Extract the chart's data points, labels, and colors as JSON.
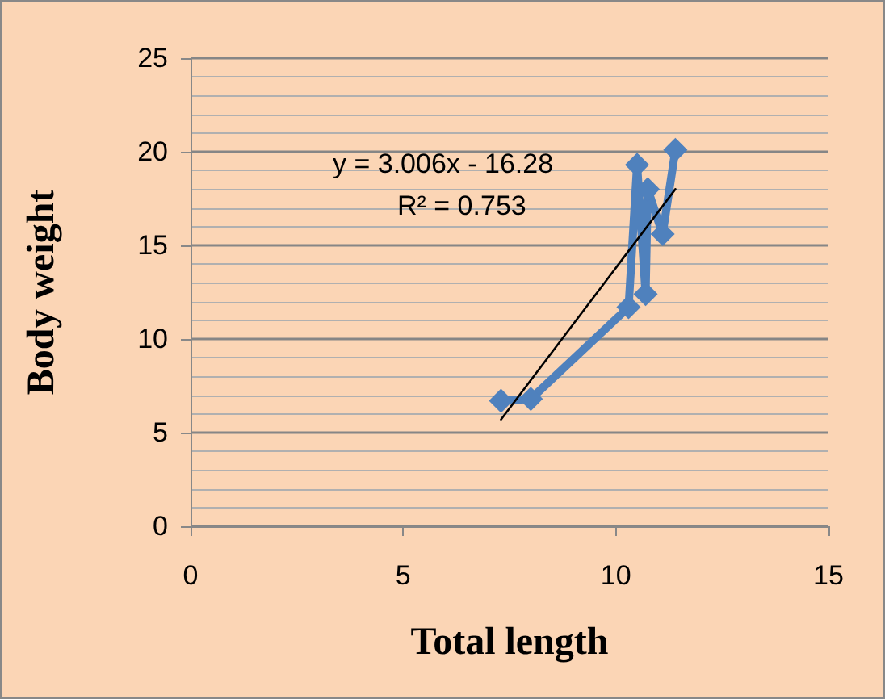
{
  "chart_data": {
    "type": "line",
    "xlabel": "Total length",
    "ylabel": "Body weight",
    "xlim": [
      0,
      15
    ],
    "xticks": [
      0,
      5,
      10,
      15
    ],
    "ylim": [
      0,
      25
    ],
    "yticks": [
      0,
      5,
      10,
      15,
      20,
      25
    ],
    "grid": "y",
    "series": [
      {
        "color": "#4f81bd",
        "marker": "diamond",
        "x": [
          7.3,
          8.0,
          10.3,
          10.5,
          10.7,
          10.75,
          11.1,
          11.4
        ],
        "values": [
          6.7,
          6.8,
          11.7,
          19.3,
          12.4,
          18.0,
          15.6,
          20.1
        ]
      },
      {
        "type": "line",
        "color": "#000000",
        "marker": "none",
        "x": [
          7.3,
          11.4
        ],
        "values": [
          5.7,
          18.0
        ]
      }
    ],
    "annotations": [
      "y = 3.006x - 16.28",
      "R² = 0.753"
    ]
  }
}
